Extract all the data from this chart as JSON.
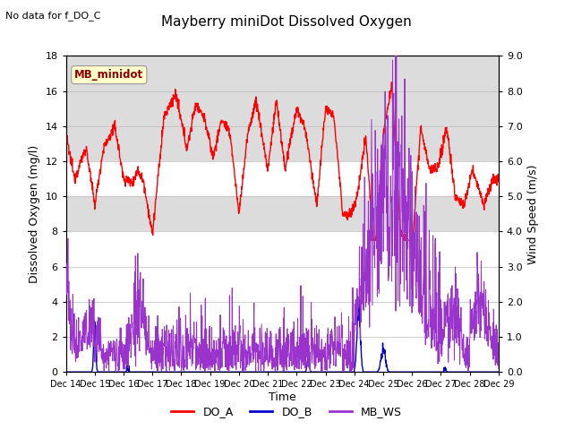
{
  "title": "Mayberry miniDot Dissolved Oxygen",
  "subtitle": "No data for f_DO_C",
  "xlabel": "Time",
  "ylabel_left": "Dissolved Oxygen (mg/l)",
  "ylabel_right": "Wind Speed (m/s)",
  "ylim_left": [
    0,
    18
  ],
  "ylim_right": [
    0.0,
    9.0
  ],
  "yticks_left": [
    0,
    2,
    4,
    6,
    8,
    10,
    12,
    14,
    16,
    18
  ],
  "yticks_right": [
    0.0,
    1.0,
    2.0,
    3.0,
    4.0,
    5.0,
    6.0,
    7.0,
    8.0,
    9.0
  ],
  "xticklabels": [
    "Dec 14",
    "Dec 15",
    "Dec 16",
    "Dec 17",
    "Dec 18",
    "Dec 19",
    "Dec 20",
    "Dec 21",
    "Dec 22",
    "Dec 23",
    "Dec 24",
    "Dec 25",
    "Dec 26",
    "Dec 27",
    "Dec 28",
    "Dec 29"
  ],
  "annotation_box": "MB_minidot",
  "annotation_color": "#8B0000",
  "annotation_bg": "#FFFFCC",
  "bg_band_color": "#DCDCDC",
  "line_do_a_color": "#FF0000",
  "line_do_b_color": "#0000CC",
  "line_mb_ws_color": "#9933CC",
  "legend_labels": [
    "DO_A",
    "DO_B",
    "MB_WS"
  ],
  "legend_colors": [
    "#FF0000",
    "#0000CC",
    "#9933CC"
  ]
}
